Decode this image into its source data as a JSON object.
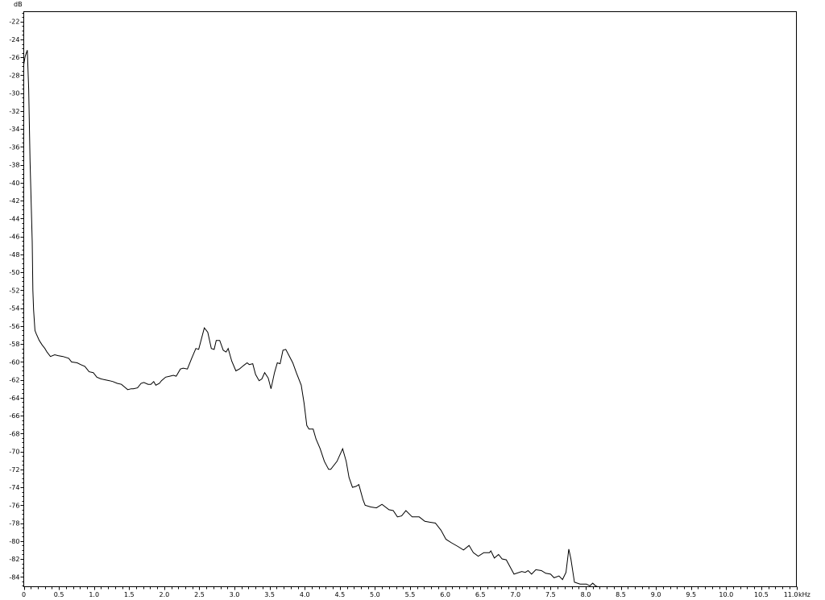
{
  "chart_data": {
    "type": "line",
    "title": "",
    "ylabel": "dB",
    "xlabel": "kHz",
    "xlim": [
      0,
      11.0
    ],
    "ylim": [
      -85.1,
      -20.9
    ],
    "grid": false,
    "x_ticks": [
      "0",
      "0.5",
      "1.0",
      "1.5",
      "2.0",
      "2.5",
      "3.0",
      "3.5",
      "4.0",
      "4.5",
      "5.0",
      "5.5",
      "6.0",
      "6.5",
      "7.0",
      "7.5",
      "8.0",
      "8.5",
      "9.0",
      "9.5",
      "10.0",
      "10.5",
      "11.0"
    ],
    "y_ticks": [
      "-22",
      "-24",
      "-26",
      "-28",
      "-30",
      "-32",
      "-34",
      "-36",
      "-38",
      "-40",
      "-42",
      "-44",
      "-46",
      "-48",
      "-50",
      "-52",
      "-54",
      "-56",
      "-58",
      "-60",
      "-62",
      "-64",
      "-66",
      "-68",
      "-70",
      "-72",
      "-74",
      "-76",
      "-78",
      "-80",
      "-82",
      "-84"
    ],
    "line_color": "#000000",
    "series": [
      {
        "x": [
          0,
          0.02,
          0.05,
          0.07,
          0.09,
          0.12,
          0.13,
          0.14,
          0.16,
          0.18,
          0.22,
          0.26,
          0.3,
          0.33,
          0.38,
          0.44,
          0.49,
          0.56,
          0.64,
          0.68,
          0.76,
          0.81,
          0.87,
          0.93,
          0.99,
          1.04,
          1.1,
          1.16,
          1.22,
          1.27,
          1.33,
          1.39,
          1.45,
          1.48,
          1.53,
          1.56,
          1.62,
          1.67,
          1.71,
          1.77,
          1.81,
          1.85,
          1.88,
          1.93,
          1.96,
          2.02,
          2.08,
          2.13,
          2.17,
          2.23,
          2.27,
          2.33,
          2.39,
          2.45,
          2.49,
          2.57,
          2.62,
          2.67,
          2.71,
          2.74,
          2.79,
          2.84,
          2.88,
          2.91,
          2.96,
          3.02,
          3.07,
          3.13,
          3.18,
          3.21,
          3.26,
          3.3,
          3.35,
          3.39,
          3.43,
          3.48,
          3.52,
          3.57,
          3.61,
          3.65,
          3.69,
          3.73,
          3.77,
          3.83,
          3.88,
          3.95,
          3.99,
          4.03,
          4.06,
          4.12,
          4.16,
          4.22,
          4.28,
          4.34,
          4.37,
          4.46,
          4.54,
          4.59,
          4.63,
          4.68,
          4.73,
          4.77,
          4.83,
          4.86,
          4.94,
          5.02,
          5.1,
          5.2,
          5.26,
          5.32,
          5.38,
          5.44,
          5.53,
          5.63,
          5.71,
          5.78,
          5.86,
          5.94,
          6.01,
          6.09,
          6.18,
          6.26,
          6.34,
          6.4,
          6.47,
          6.55,
          6.63,
          6.65,
          6.7,
          6.76,
          6.81,
          6.87,
          6.98,
          7.09,
          7.14,
          7.18,
          7.23,
          7.29,
          7.37,
          7.43,
          7.5,
          7.55,
          7.62,
          7.67,
          7.72,
          7.76,
          7.79,
          7.84,
          7.92,
          8.01,
          8.06,
          8.1,
          8.14,
          8.17
        ],
        "y": [
          -26.8,
          -25.9,
          -25.2,
          -29.5,
          -37.6,
          -46.6,
          -52.0,
          -54.2,
          -56.5,
          -56.9,
          -57.6,
          -58.1,
          -58.5,
          -58.9,
          -59.4,
          -59.2,
          -59.3,
          -59.4,
          -59.6,
          -60.0,
          -60.1,
          -60.3,
          -60.5,
          -61.1,
          -61.2,
          -61.7,
          -61.9,
          -62.0,
          -62.1,
          -62.2,
          -62.4,
          -62.5,
          -62.9,
          -63.1,
          -63.0,
          -63.0,
          -62.9,
          -62.4,
          -62.3,
          -62.5,
          -62.5,
          -62.2,
          -62.6,
          -62.4,
          -62.1,
          -61.7,
          -61.6,
          -61.5,
          -61.6,
          -60.8,
          -60.7,
          -60.8,
          -59.6,
          -58.5,
          -58.6,
          -56.2,
          -56.7,
          -58.5,
          -58.6,
          -57.6,
          -57.6,
          -58.7,
          -58.9,
          -58.5,
          -59.9,
          -61.0,
          -60.8,
          -60.4,
          -60.1,
          -60.3,
          -60.2,
          -61.4,
          -62.1,
          -61.9,
          -61.2,
          -61.8,
          -63.0,
          -61.2,
          -60.1,
          -60.2,
          -58.7,
          -58.6,
          -59.2,
          -60.1,
          -61.2,
          -62.6,
          -64.6,
          -67.1,
          -67.5,
          -67.5,
          -68.6,
          -69.7,
          -71.1,
          -72.0,
          -72.0,
          -71.1,
          -69.7,
          -71.1,
          -72.9,
          -74.0,
          -73.9,
          -73.7,
          -75.4,
          -76.0,
          -76.2,
          -76.3,
          -75.9,
          -76.5,
          -76.6,
          -77.3,
          -77.2,
          -76.6,
          -77.3,
          -77.3,
          -77.8,
          -77.9,
          -78.0,
          -78.8,
          -79.8,
          -80.2,
          -80.6,
          -81.0,
          -80.5,
          -81.3,
          -81.7,
          -81.3,
          -81.3,
          -81.1,
          -81.9,
          -81.5,
          -82.0,
          -82.1,
          -83.7,
          -83.4,
          -83.5,
          -83.3,
          -83.7,
          -83.2,
          -83.3,
          -83.6,
          -83.7,
          -84.1,
          -83.9,
          -84.3,
          -83.5,
          -80.9,
          -82.0,
          -84.6,
          -84.8,
          -84.8,
          -85.0,
          -84.7,
          -85.0,
          -85.1
        ]
      }
    ]
  }
}
